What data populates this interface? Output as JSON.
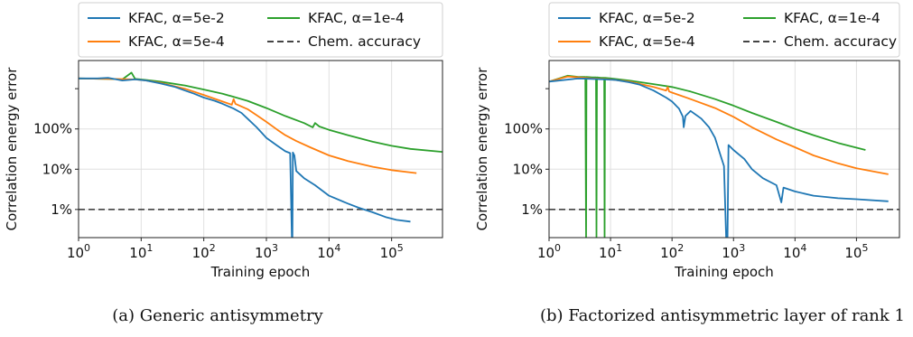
{
  "captions": [
    "(a) Generic antisymmetry",
    "(b) Factorized antisymmetric layer of rank 1"
  ],
  "colors": {
    "series": [
      "#1f77b4",
      "#ff7f0e",
      "#2ca02c"
    ],
    "reference": "#444444",
    "grid": "#e0e0e0"
  },
  "chart_data": [
    {
      "type": "line",
      "xlabel": "Training epoch",
      "ylabel": "Correlation energy error",
      "xscale": "log",
      "yscale": "log",
      "xlim": [
        1,
        650000
      ],
      "ylim": [
        0.2,
        5000
      ],
      "xticks": [
        {
          "base": "10",
          "exp": "0"
        },
        {
          "base": "10",
          "exp": "1"
        },
        {
          "base": "10",
          "exp": "2"
        },
        {
          "base": "10",
          "exp": "3"
        },
        {
          "base": "10",
          "exp": "4"
        },
        {
          "base": "10",
          "exp": "5"
        }
      ],
      "yticks": [
        "100%",
        "10%",
        "1%"
      ],
      "grid": true,
      "legend_position": "top",
      "series": [
        {
          "name": "KFAC, α=5e-2",
          "points": [
            [
              1,
              1800
            ],
            [
              2,
              1800
            ],
            [
              3,
              1850
            ],
            [
              5,
              1600
            ],
            [
              8,
              1700
            ],
            [
              12,
              1600
            ],
            [
              20,
              1350
            ],
            [
              35,
              1100
            ],
            [
              50,
              900
            ],
            [
              70,
              750
            ],
            [
              100,
              600
            ],
            [
              150,
              500
            ],
            [
              200,
              420
            ],
            [
              300,
              320
            ],
            [
              400,
              250
            ],
            [
              500,
              180
            ],
            [
              700,
              110
            ],
            [
              1000,
              60
            ],
            [
              1500,
              38
            ],
            [
              2000,
              28
            ],
            [
              2400,
              25
            ],
            [
              2550,
              0.1
            ],
            [
              2600,
              0.1
            ],
            [
              2650,
              26
            ],
            [
              2800,
              22
            ],
            [
              3000,
              9
            ],
            [
              4000,
              6
            ],
            [
              6000,
              4
            ],
            [
              10000,
              2.2
            ],
            [
              20000,
              1.4
            ],
            [
              30000,
              1.1
            ],
            [
              50000,
              0.85
            ],
            [
              80000,
              0.65
            ],
            [
              120000,
              0.55
            ],
            [
              200000,
              0.5
            ]
          ]
        },
        {
          "name": "KFAC, α=5e-4",
          "points": [
            [
              1,
              1800
            ],
            [
              3,
              1750
            ],
            [
              8,
              1700
            ],
            [
              12,
              1600
            ],
            [
              20,
              1400
            ],
            [
              50,
              1000
            ],
            [
              100,
              700
            ],
            [
              200,
              480
            ],
            [
              280,
              400
            ],
            [
              300,
              550
            ],
            [
              320,
              420
            ],
            [
              500,
              310
            ],
            [
              700,
              220
            ],
            [
              1000,
              150
            ],
            [
              1500,
              95
            ],
            [
              2000,
              70
            ],
            [
              3000,
              50
            ],
            [
              5000,
              35
            ],
            [
              10000,
              22
            ],
            [
              20000,
              16
            ],
            [
              50000,
              11.5
            ],
            [
              100000,
              9.5
            ],
            [
              250000,
              8
            ]
          ]
        },
        {
          "name": "KFAC, α=1e-4",
          "points": [
            [
              1,
              1800
            ],
            [
              3,
              1750
            ],
            [
              5,
              1700
            ],
            [
              7,
              2500
            ],
            [
              8,
              1750
            ],
            [
              12,
              1650
            ],
            [
              20,
              1500
            ],
            [
              50,
              1200
            ],
            [
              100,
              950
            ],
            [
              200,
              750
            ],
            [
              500,
              500
            ],
            [
              1000,
              330
            ],
            [
              2000,
              210
            ],
            [
              4000,
              140
            ],
            [
              5500,
              110
            ],
            [
              6000,
              140
            ],
            [
              7000,
              115
            ],
            [
              10000,
              95
            ],
            [
              20000,
              70
            ],
            [
              50000,
              48
            ],
            [
              100000,
              38
            ],
            [
              200000,
              32
            ],
            [
              650000,
              27
            ]
          ]
        }
      ],
      "reference": {
        "name": "Chem. accuracy",
        "value": 1
      }
    },
    {
      "type": "line",
      "xlabel": "Training epoch",
      "ylabel": "Correlation energy error",
      "xscale": "log",
      "yscale": "log",
      "xlim": [
        1,
        500000
      ],
      "ylim": [
        0.2,
        5000
      ],
      "xticks": [
        {
          "base": "10",
          "exp": "0"
        },
        {
          "base": "10",
          "exp": "1"
        },
        {
          "base": "10",
          "exp": "2"
        },
        {
          "base": "10",
          "exp": "3"
        },
        {
          "base": "10",
          "exp": "4"
        },
        {
          "base": "10",
          "exp": "5"
        }
      ],
      "yticks": [
        "100%",
        "10%",
        "1%"
      ],
      "grid": true,
      "legend_position": "top",
      "series": [
        {
          "name": "KFAC, α=5e-2",
          "points": [
            [
              1,
              1500
            ],
            [
              3,
              1800
            ],
            [
              5,
              1750
            ],
            [
              8,
              1700
            ],
            [
              12,
              1650
            ],
            [
              20,
              1450
            ],
            [
              30,
              1250
            ],
            [
              50,
              900
            ],
            [
              80,
              600
            ],
            [
              100,
              480
            ],
            [
              130,
              320
            ],
            [
              150,
              200
            ],
            [
              155,
              110
            ],
            [
              165,
              210
            ],
            [
              200,
              280
            ],
            [
              300,
              180
            ],
            [
              400,
              110
            ],
            [
              500,
              60
            ],
            [
              600,
              25
            ],
            [
              700,
              12
            ],
            [
              760,
              0.1
            ],
            [
              800,
              0.1
            ],
            [
              830,
              40
            ],
            [
              1000,
              30
            ],
            [
              1500,
              18
            ],
            [
              2000,
              10
            ],
            [
              3000,
              6
            ],
            [
              5000,
              4
            ],
            [
              6000,
              1.5
            ],
            [
              6500,
              3.5
            ],
            [
              10000,
              2.8
            ],
            [
              20000,
              2.2
            ],
            [
              50000,
              1.9
            ],
            [
              100000,
              1.8
            ],
            [
              330000,
              1.6
            ]
          ]
        },
        {
          "name": "KFAC, α=5e-4",
          "points": [
            [
              1,
              1500
            ],
            [
              2,
              2000
            ],
            [
              5,
              1800
            ],
            [
              10,
              1700
            ],
            [
              20,
              1500
            ],
            [
              50,
              1100
            ],
            [
              80,
              900
            ],
            [
              85,
              1100
            ],
            [
              90,
              850
            ],
            [
              100,
              800
            ],
            [
              200,
              550
            ],
            [
              500,
              330
            ],
            [
              1000,
              200
            ],
            [
              2000,
              110
            ],
            [
              5000,
              55
            ],
            [
              10000,
              35
            ],
            [
              20000,
              22
            ],
            [
              50000,
              14
            ],
            [
              100000,
              10.5
            ],
            [
              330000,
              7.5
            ]
          ]
        },
        {
          "name": "KFAC, α=1e-4",
          "points": [
            [
              1,
              1500
            ],
            [
              2,
              2100
            ],
            [
              3,
              1950
            ],
            [
              3.9,
              1950
            ],
            [
              4,
              0.1
            ],
            [
              4.05,
              1950
            ],
            [
              5,
              1900
            ],
            [
              5.8,
              1900
            ],
            [
              5.9,
              0.1
            ],
            [
              6,
              1900
            ],
            [
              7,
              1850
            ],
            [
              7.9,
              1850
            ],
            [
              8,
              0.1
            ],
            [
              8.1,
              1850
            ],
            [
              10,
              1800
            ],
            [
              20,
              1600
            ],
            [
              50,
              1300
            ],
            [
              100,
              1100
            ],
            [
              200,
              850
            ],
            [
              500,
              550
            ],
            [
              1000,
              380
            ],
            [
              2000,
              250
            ],
            [
              5000,
              150
            ],
            [
              10000,
              100
            ],
            [
              20000,
              70
            ],
            [
              50000,
              45
            ],
            [
              140000,
              30
            ]
          ]
        }
      ],
      "reference": {
        "name": "Chem. accuracy",
        "value": 1
      }
    }
  ]
}
